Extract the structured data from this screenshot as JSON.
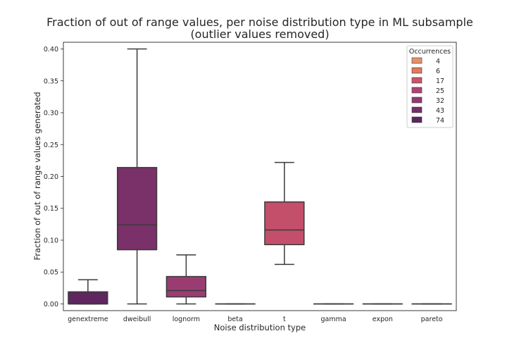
{
  "chart_data": {
    "type": "box",
    "title": [
      "Fraction of out of range values, per noise distribution type in ML subsample",
      "(outlier values removed)"
    ],
    "xlabel": "Noise distribution type",
    "ylabel": "Fraction of out of range values generated",
    "ylim": [
      -0.0105,
      0.4105
    ],
    "yticks": [
      "0.00",
      "0.05",
      "0.10",
      "0.15",
      "0.20",
      "0.25",
      "0.30",
      "0.35",
      "0.40"
    ],
    "categories": [
      "genextreme",
      "dweibull",
      "lognorm",
      "beta",
      "t",
      "gamma",
      "expon",
      "pareto"
    ],
    "boxes": [
      {
        "category": "genextreme",
        "whislo": 0.0,
        "q1": 0.0,
        "med": 0.0,
        "q3": 0.019,
        "whishi": 0.038,
        "occurrences": 74,
        "color": "#5f2660"
      },
      {
        "category": "dweibull",
        "whislo": 0.0,
        "q1": 0.085,
        "med": 0.124,
        "q3": 0.214,
        "whishi": 0.4,
        "occurrences": 43,
        "color": "#7a3069"
      },
      {
        "category": "lognorm",
        "whislo": 0.0,
        "q1": 0.011,
        "med": 0.021,
        "q3": 0.043,
        "whishi": 0.077,
        "occurrences": 32,
        "color": "#9a3c72"
      },
      {
        "category": "beta",
        "whislo": 0.0,
        "q1": 0.0,
        "med": 0.0,
        "q3": 0.0,
        "whishi": 0.0,
        "occurrences": null,
        "color": "#a8467a"
      },
      {
        "category": "t",
        "whislo": 0.062,
        "q1": 0.093,
        "med": 0.116,
        "q3": 0.16,
        "whishi": 0.222,
        "occurrences": 17,
        "color": "#c34f6b"
      },
      {
        "category": "gamma",
        "whislo": 0.0,
        "q1": 0.0,
        "med": 0.0,
        "q3": 0.0,
        "whishi": 0.0,
        "occurrences": null,
        "color": "#d9655f"
      },
      {
        "category": "expon",
        "whislo": 0.0,
        "q1": 0.0,
        "med": 0.0,
        "q3": 0.0,
        "whishi": 0.0,
        "occurrences": null,
        "color": "#cf5a62"
      },
      {
        "category": "pareto",
        "whislo": 0.0,
        "q1": 0.0,
        "med": 0.0,
        "q3": 0.0,
        "whishi": 0.0,
        "occurrences": null,
        "color": "#e07e5c"
      }
    ],
    "legend": {
      "title": "Occurrences",
      "position": "top-right",
      "entries": [
        {
          "label": "4",
          "color": "#e6906b"
        },
        {
          "label": "6",
          "color": "#df7a5e"
        },
        {
          "label": "17",
          "color": "#c9566a"
        },
        {
          "label": "25",
          "color": "#b14471"
        },
        {
          "label": "32",
          "color": "#923a70"
        },
        {
          "label": "43",
          "color": "#74306a"
        },
        {
          "label": "74",
          "color": "#5a2660"
        }
      ]
    },
    "grid": false
  }
}
